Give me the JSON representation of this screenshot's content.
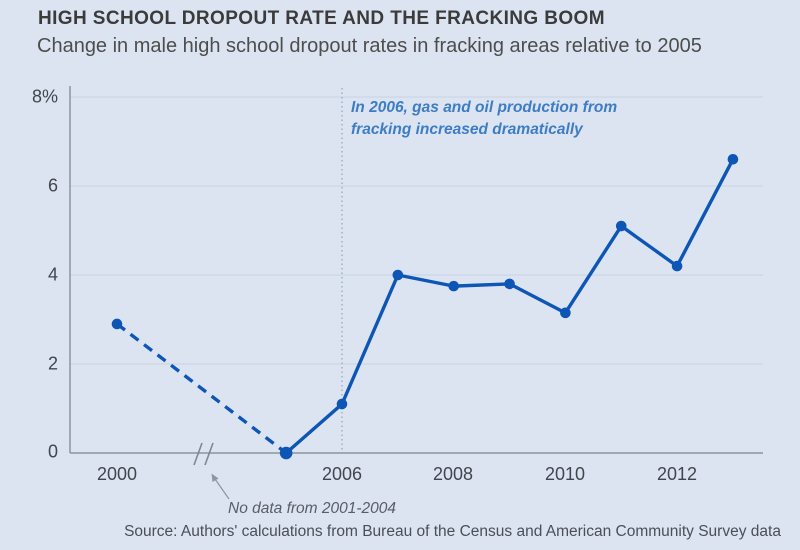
{
  "header": {
    "title": "HIGH SCHOOL DROPOUT RATE AND THE FRACKING BOOM",
    "subtitle": "Change in male high school dropout rates in fracking areas relative to 2005"
  },
  "chart_data": {
    "type": "line",
    "title": "High school dropout rate and the fracking boom",
    "x": [
      2000,
      2005,
      2006,
      2007,
      2008,
      2009,
      2010,
      2011,
      2012,
      2013
    ],
    "values": [
      2.9,
      0,
      1.1,
      4.0,
      3.75,
      3.8,
      3.15,
      5.1,
      4.2,
      6.6
    ],
    "dashed_segment_years": [
      2000,
      2005
    ],
    "axis_break_between": [
      2000,
      2005
    ],
    "ylim": [
      0,
      8
    ],
    "y_tick_labels": [
      "8%",
      "6",
      "4",
      "2",
      "0"
    ],
    "x_tick_labels": [
      "2000",
      "2006",
      "2008",
      "2010",
      "2012"
    ],
    "grid": "horizontal",
    "legend": "none",
    "reference_line_x": 2006
  },
  "annotations": {
    "fracking": {
      "lines": [
        "In 2006, gas and oil production from",
        "fracking increased dramatically"
      ]
    },
    "no_data": "No data from 2001-2004"
  },
  "footer": {
    "source": "Source: Authors' calculations from Bureau of the Census and American Community Survey data"
  },
  "colors": {
    "background": "#dce4f1",
    "line": "#0d56b6",
    "annotation_blue": "#3d7dc4",
    "gridline": "#c8d2e4",
    "axis": "#8c939e",
    "reference_dotted": "#8fa1c0",
    "break_gray": "#7e8795"
  }
}
